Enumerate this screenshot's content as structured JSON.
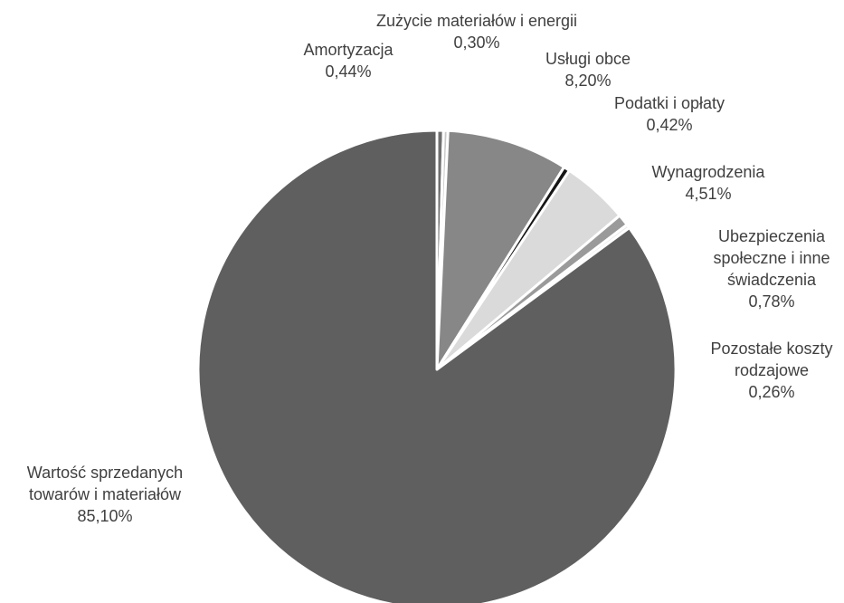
{
  "chart_data": {
    "type": "pie",
    "title": "",
    "slices": [
      {
        "label": "Amortyzacja",
        "value_label": "0,44%",
        "value": 0.44,
        "color": "#6e6e6e"
      },
      {
        "label": "Zużycie materiałów i energii",
        "value_label": "0,30%",
        "value": 0.3,
        "color": "#c9c9c9"
      },
      {
        "label": "Usługi obce",
        "value_label": "8,20%",
        "value": 8.2,
        "color": "#878787"
      },
      {
        "label": "Podatki i opłaty",
        "value_label": "0,42%",
        "value": 0.42,
        "color": "#161616"
      },
      {
        "label": "Wynagrodzenia",
        "value_label": "4,51%",
        "value": 4.51,
        "color": "#dadada"
      },
      {
        "label": "Ubezpieczenia społeczne i inne świadczenia",
        "value_label": "0,78%",
        "value": 0.78,
        "color": "#9a9a9a"
      },
      {
        "label": "Pozostałe koszty rodzajowe",
        "value_label": "0,26%",
        "value": 0.26,
        "color": "#ececec"
      },
      {
        "label": "Wartość sprzedanych towarów i materiałów",
        "value_label": "85,10%",
        "value": 85.1,
        "color": "#5f5f5f"
      }
    ],
    "start_angle_deg": 0,
    "direction": "clockwise",
    "legend": "none",
    "slice_separator_color": "#ffffff"
  }
}
